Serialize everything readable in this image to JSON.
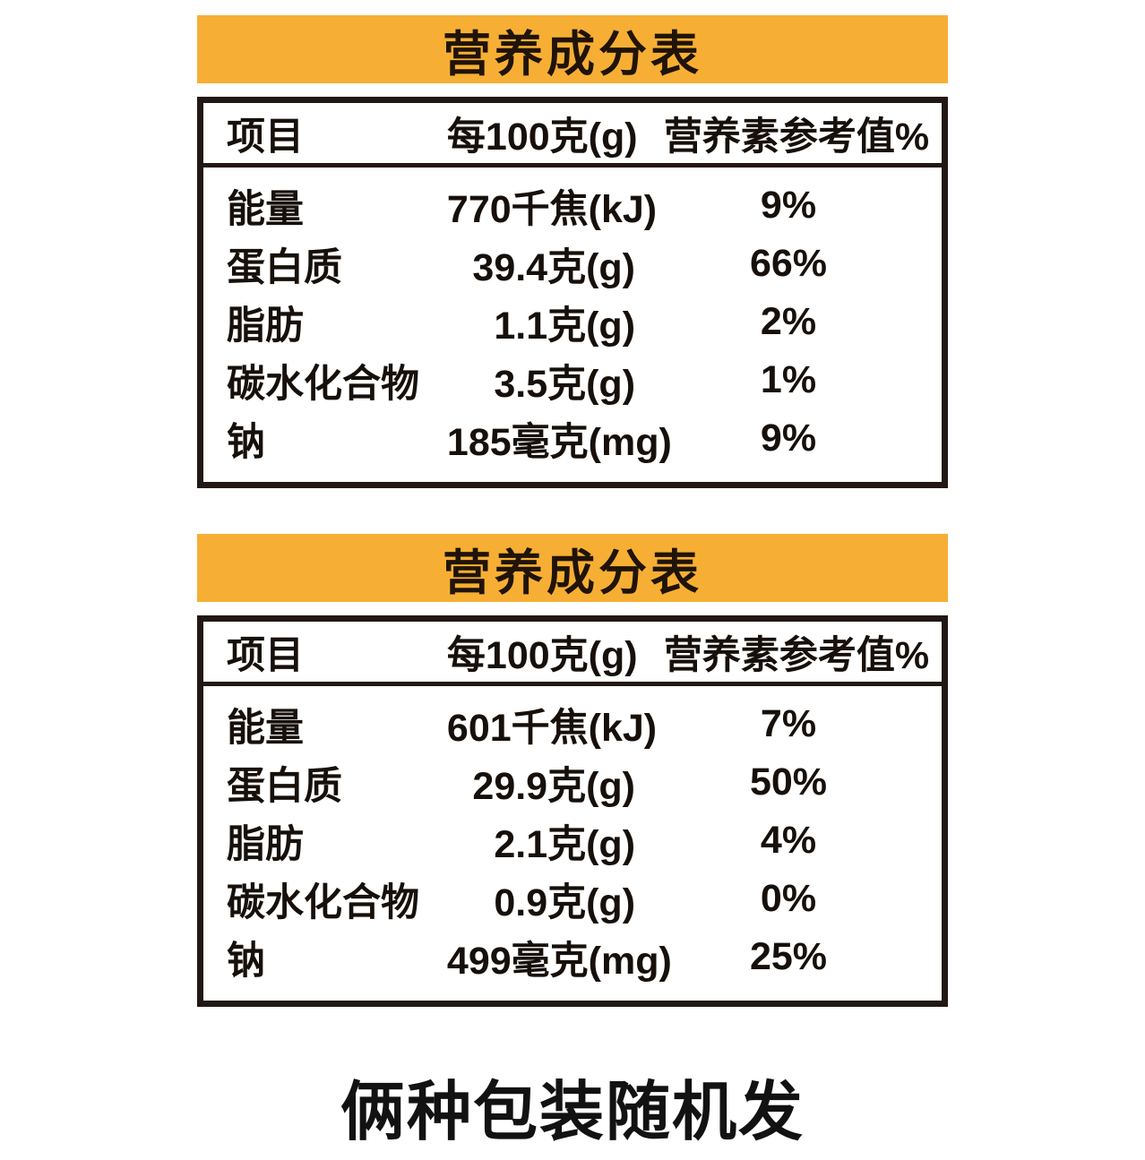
{
  "colors": {
    "banner_background": "#F6AF34",
    "banner_text": "#201307",
    "table_border": "#221813",
    "body_text": "#17100a",
    "page_background": "#ffffff"
  },
  "tables": [
    {
      "title": "营养成分表",
      "headers": [
        "项目",
        "每100克(g)",
        "营养素参考值%"
      ],
      "rows": [
        [
          "能量",
          "770千焦(kJ)",
          "9%"
        ],
        [
          "蛋白质",
          "39.4克(g)",
          "66%"
        ],
        [
          "脂肪",
          "1.1克(g)",
          "2%"
        ],
        [
          "碳水化合物",
          "3.5克(g)",
          "1%"
        ],
        [
          "钠",
          "185毫克(mg)",
          "9%"
        ]
      ]
    },
    {
      "title": "营养成分表",
      "headers": [
        "项目",
        "每100克(g)",
        "营养素参考值%"
      ],
      "rows": [
        [
          "能量",
          "601千焦(kJ)",
          "7%"
        ],
        [
          "蛋白质",
          "29.9克(g)",
          "50%"
        ],
        [
          "脂肪",
          "2.1克(g)",
          "4%"
        ],
        [
          "碳水化合物",
          "0.9克(g)",
          "0%"
        ],
        [
          "钠",
          "499毫克(mg)",
          "25%"
        ]
      ]
    }
  ],
  "caption": "俩种包装随机发"
}
